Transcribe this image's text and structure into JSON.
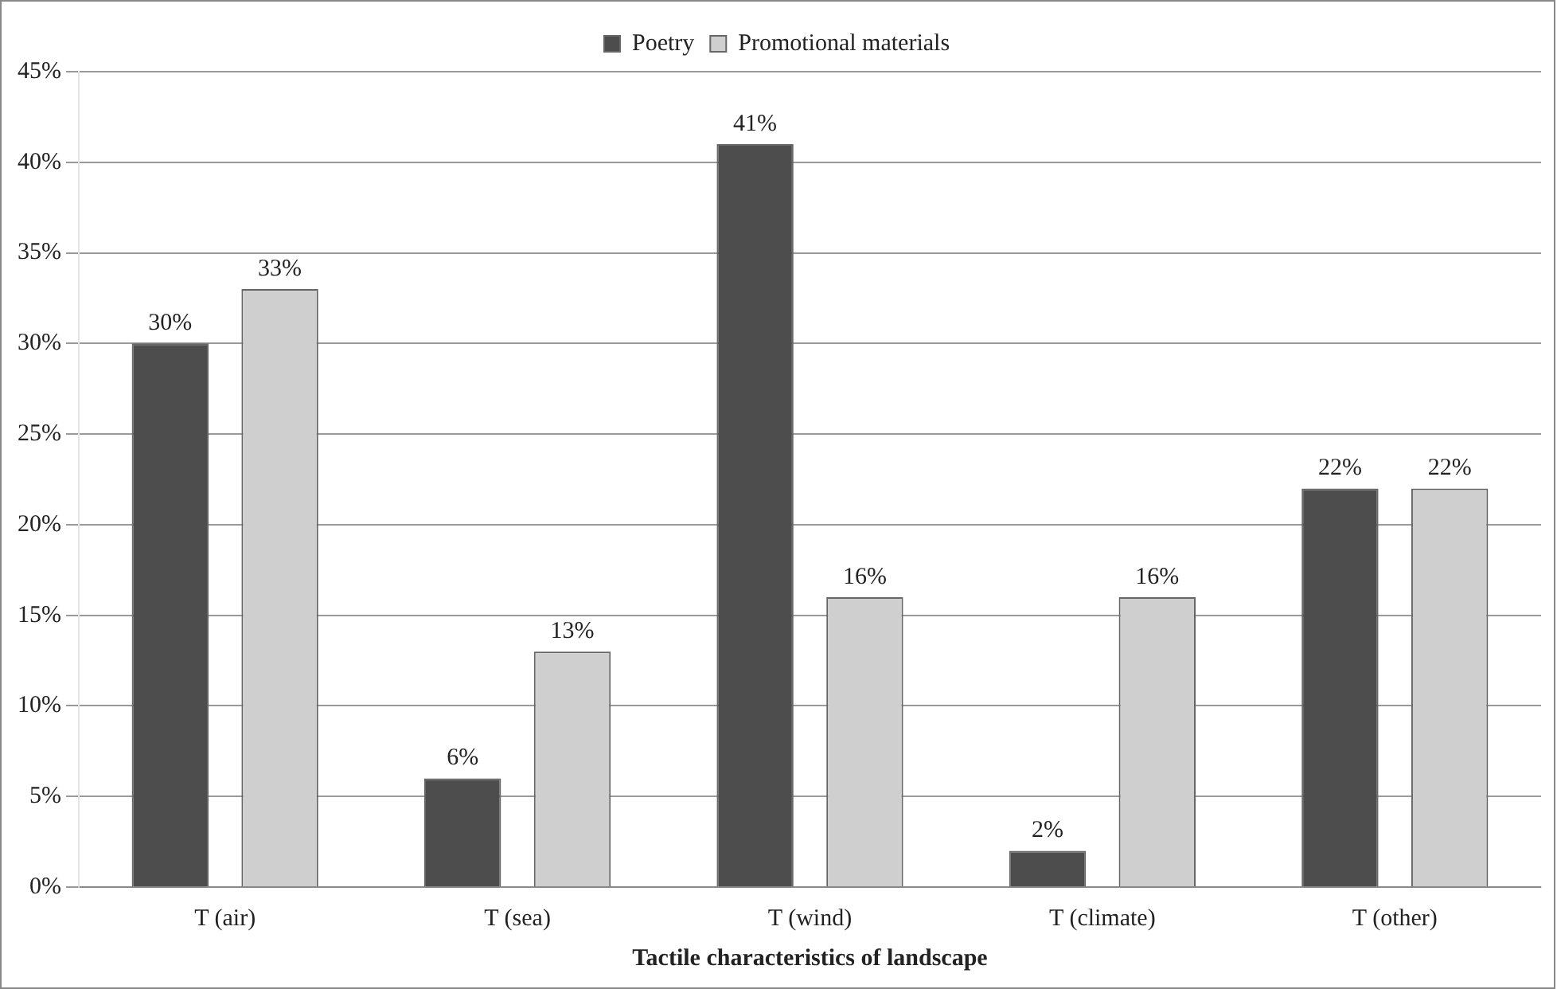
{
  "chart_data": {
    "type": "bar",
    "xlabel": "Tactile characteristics of landscape",
    "categories": [
      "T (air)",
      "T (sea)",
      "T (wind)",
      "T (climate)",
      "T (other)"
    ],
    "series": [
      {
        "name": "Poetry",
        "color": "#4d4d4d",
        "values": [
          30,
          6,
          41,
          2,
          22
        ],
        "value_labels": [
          "30%",
          "6%",
          "41%",
          "2%",
          "22%"
        ]
      },
      {
        "name": "Promotional materials",
        "color": "#cfcfcf",
        "values": [
          33,
          13,
          16,
          16,
          22
        ],
        "value_labels": [
          "33%",
          "13%",
          "16%",
          "16%",
          "22%"
        ]
      }
    ],
    "ylim": [
      0,
      45
    ],
    "yticks": [
      {
        "value": 0,
        "label": "0%"
      },
      {
        "value": 5,
        "label": "5%"
      },
      {
        "value": 10,
        "label": "10%"
      },
      {
        "value": 15,
        "label": "15%"
      },
      {
        "value": 20,
        "label": "20%"
      },
      {
        "value": 25,
        "label": "25%"
      },
      {
        "value": 30,
        "label": "30%"
      },
      {
        "value": 35,
        "label": "35%"
      },
      {
        "value": 40,
        "label": "40%"
      },
      {
        "value": 45,
        "label": "45%"
      }
    ],
    "grid": "y",
    "legend": "top"
  }
}
